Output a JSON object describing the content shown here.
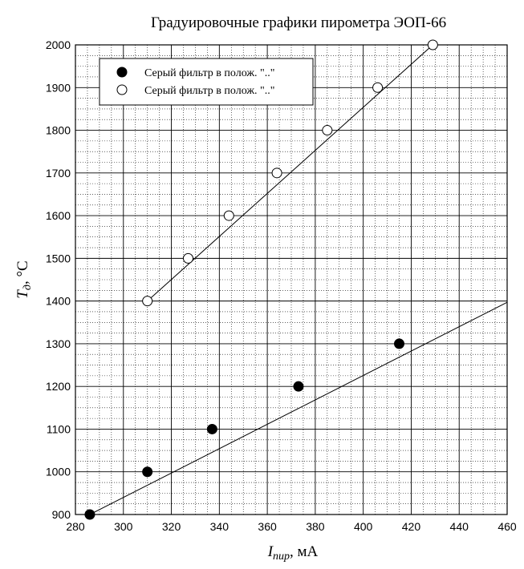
{
  "chart_data": {
    "type": "scatter",
    "title": "Градуировочные графики пирометра ЭОП-66",
    "xlabel": {
      "main": "I",
      "sub": "пир",
      "unit": ", мА"
    },
    "ylabel": {
      "main": "T",
      "sub": "д",
      "unit": ", °C"
    },
    "xlim": [
      280,
      460
    ],
    "ylim": [
      900,
      2000
    ],
    "x_ticks": [
      280,
      300,
      320,
      340,
      360,
      380,
      400,
      420,
      440,
      460
    ],
    "y_ticks": [
      900,
      1000,
      1100,
      1200,
      1300,
      1400,
      1500,
      1600,
      1700,
      1800,
      1900,
      2000
    ],
    "grid": true,
    "legend_position": "top-left",
    "series": [
      {
        "name": "Серый фильтр в полож. \"..\"",
        "marker": "filled-circle",
        "color": "#000000",
        "x": [
          286,
          310,
          337,
          373,
          415
        ],
        "y": [
          900,
          1000,
          1100,
          1200,
          1300
        ],
        "fit_line": {
          "x": [
            286,
            460
          ],
          "y": [
            900,
            1397
          ]
        }
      },
      {
        "name": "Серый фильтр в полож. \"..\"",
        "marker": "open-circle",
        "color": "#000000",
        "x": [
          310,
          327,
          344,
          364,
          385,
          406,
          429
        ],
        "y": [
          1400,
          1500,
          1600,
          1700,
          1800,
          1900,
          2000
        ],
        "fit_line": {
          "x": [
            310,
            429
          ],
          "y": [
            1400,
            2000
          ]
        }
      }
    ]
  }
}
